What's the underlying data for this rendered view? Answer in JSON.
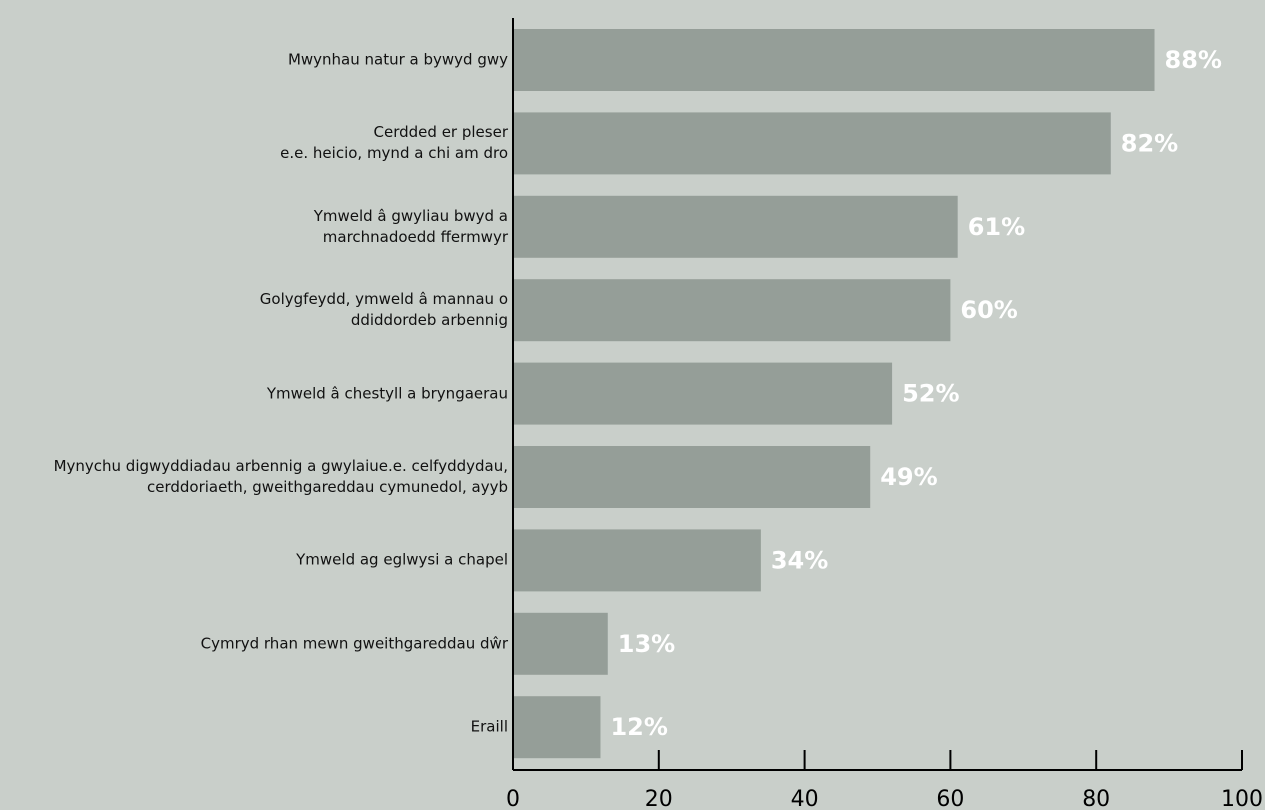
{
  "chart_data": {
    "type": "bar",
    "orientation": "horizontal",
    "categories": [
      "Mwynhau natur a bywyd gwy",
      "Cerdded er pleser\ne.e. heicio, mynd a chi am dro",
      "Ymweld â gwyliau bwyd a\nmarchnadoedd ffermwyr",
      "Golygfeydd, ymweld â mannau o\nddiddordeb arbennig",
      "Ymweld â chestyll a bryngaerau",
      "Mynychu digwyddiadau arbennig a gwylaiue.e. celfyddydau,\ncerddoriaeth, gweithgareddau cymunedol, ayyb",
      "Ymweld ag eglwysi a chapel",
      "Cymryd rhan mewn gweithgareddau dŵr",
      "Eraill"
    ],
    "values": [
      88,
      82,
      61,
      60,
      52,
      49,
      34,
      13,
      12
    ],
    "value_labels": [
      "88%",
      "82%",
      "61%",
      "60%",
      "52%",
      "49%",
      "34%",
      "13%",
      "12%"
    ],
    "color": "#959e98",
    "xlim": [
      0,
      100
    ],
    "xticks": [
      0,
      20,
      40,
      60,
      80,
      100
    ]
  }
}
